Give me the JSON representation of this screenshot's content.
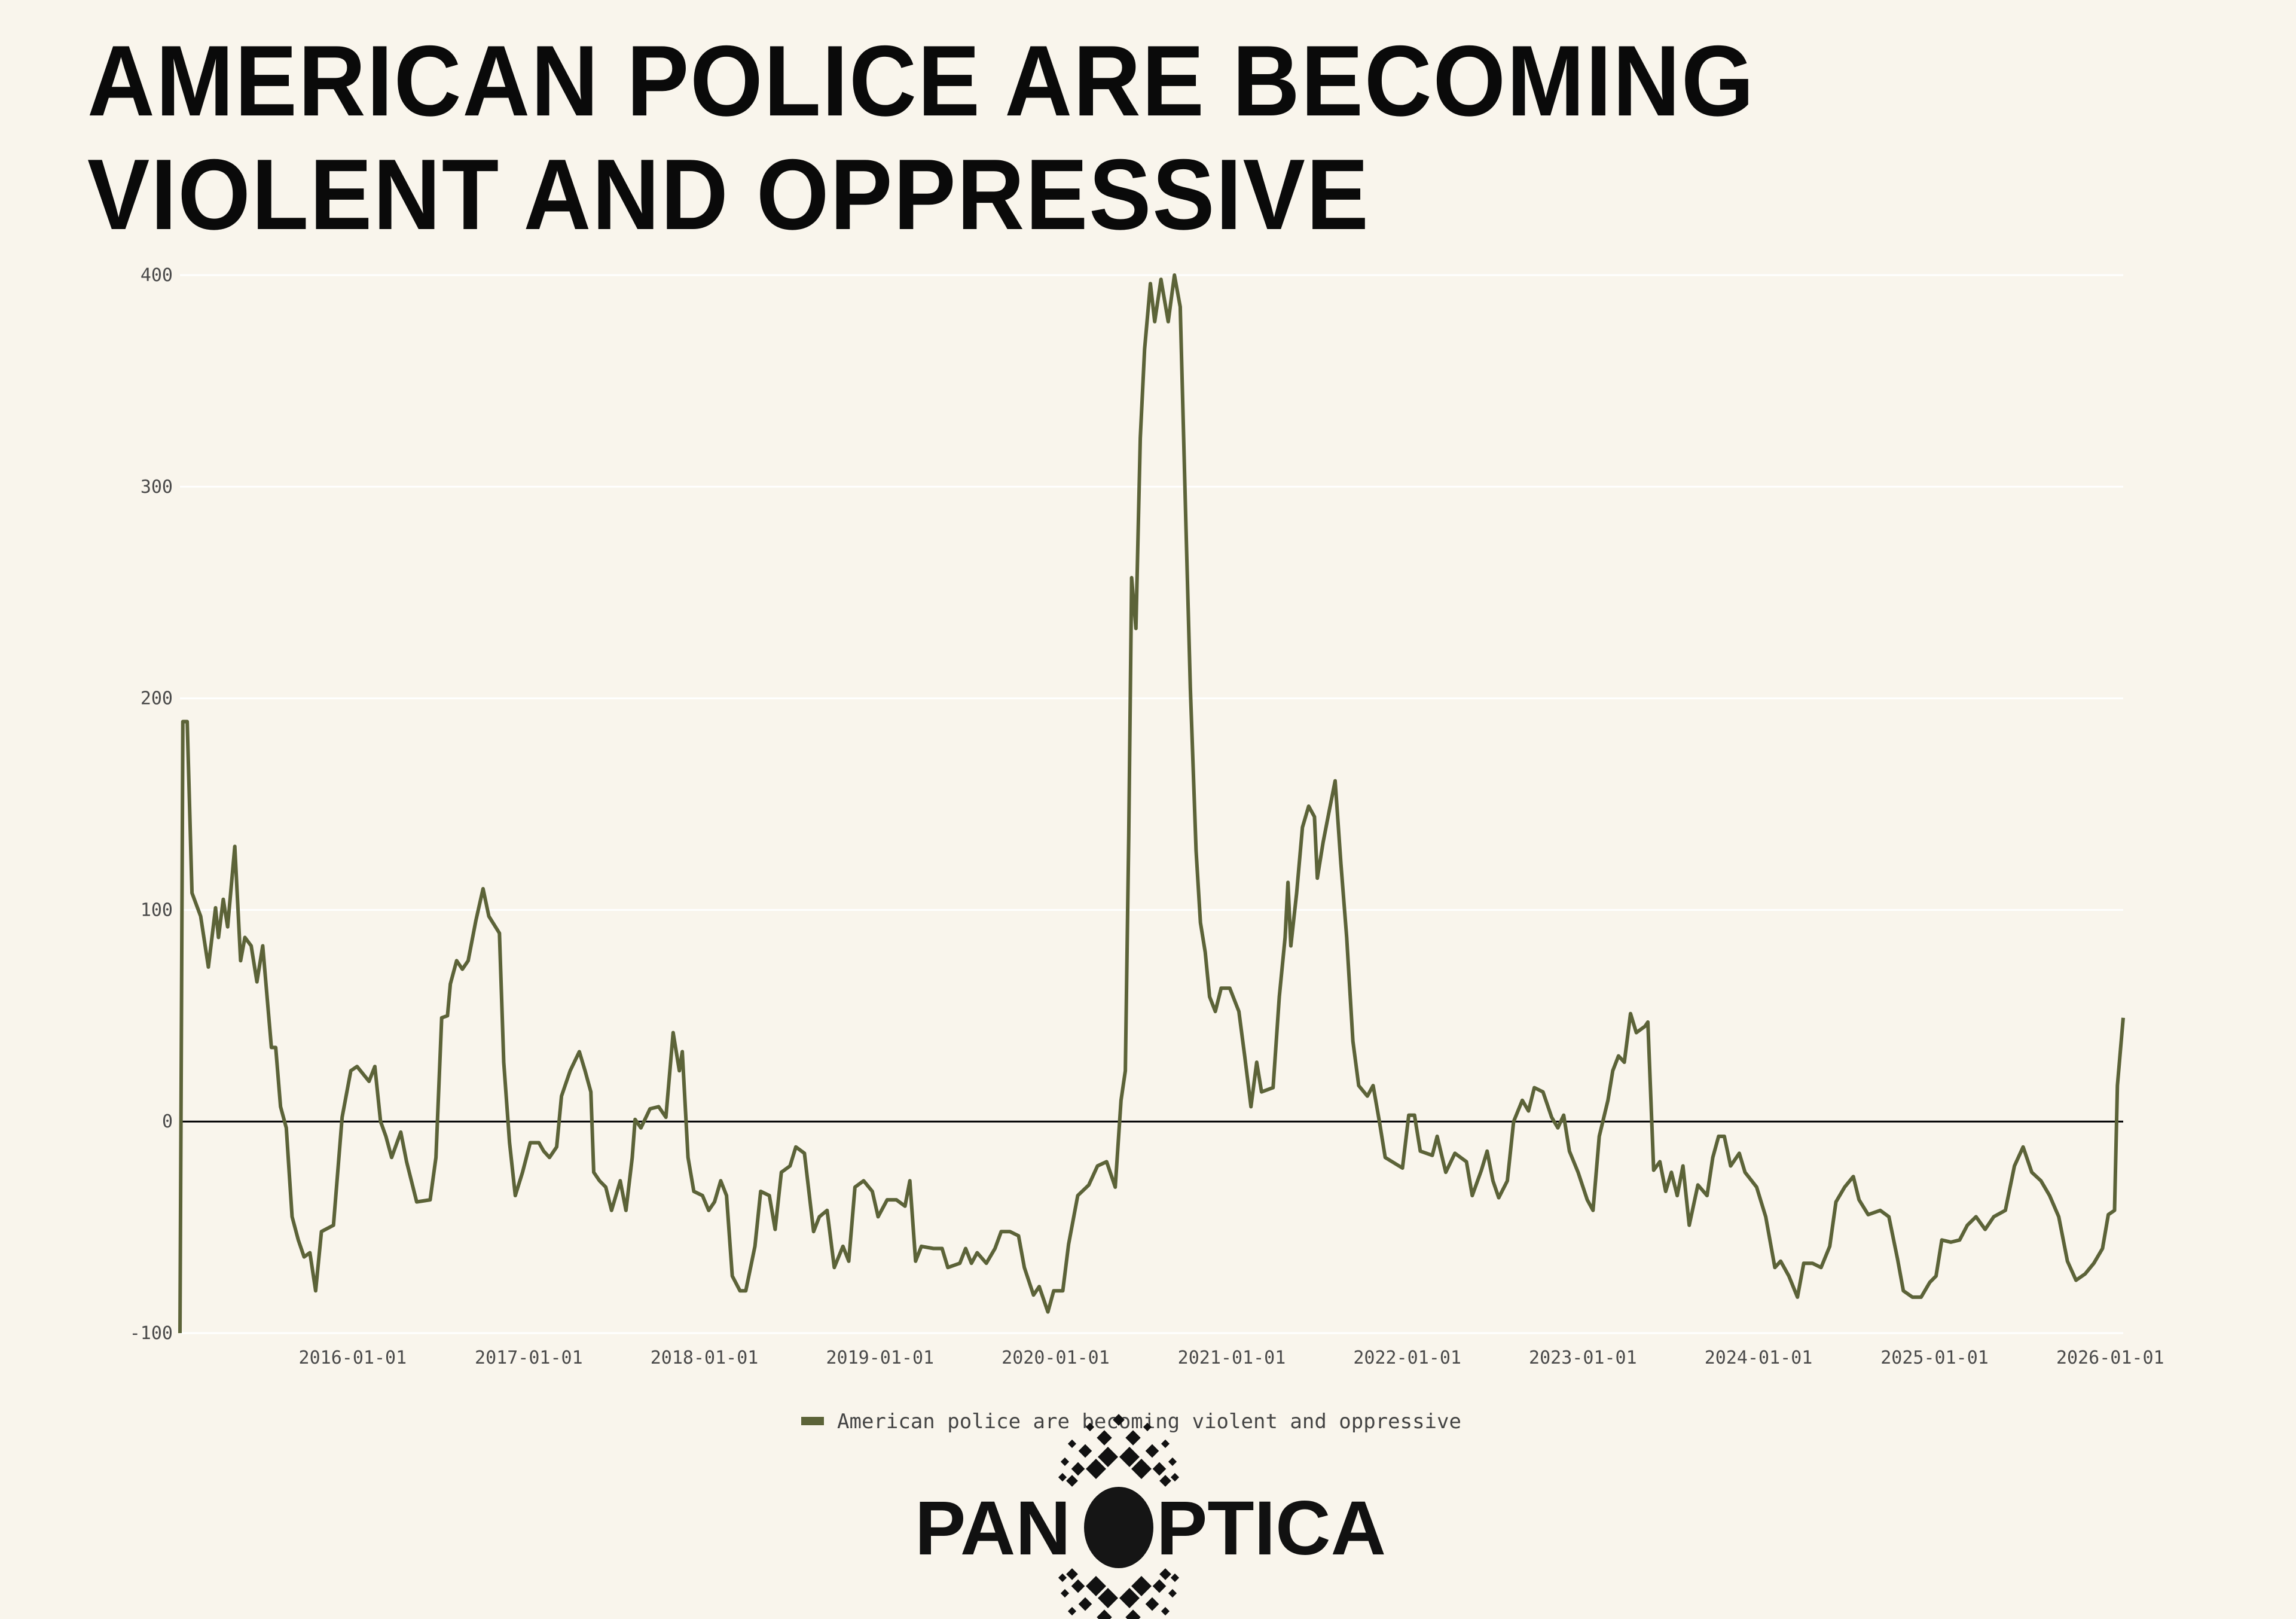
{
  "title": {
    "line1": "AMERICAN POLICE ARE BECOMING",
    "line2": "VIOLENT AND OPPRESSIVE"
  },
  "logo": {
    "text": "PANOPTICA"
  },
  "colors": {
    "background": "#f9f5ec",
    "series": "#5c6338",
    "zero_line": "#000000",
    "grid": "#ffffff"
  },
  "chart_data": {
    "type": "line",
    "title": "AMERICAN POLICE ARE BECOMING VIOLENT AND OPPRESSIVE",
    "xlabel": "",
    "ylabel": "",
    "ylim": [
      -100,
      400
    ],
    "yticks": [
      "400",
      "300",
      "200",
      "100",
      "0",
      "-100"
    ],
    "xticks": [
      "2016-01-01",
      "2017-01-01",
      "2018-01-01",
      "2019-01-01",
      "2020-01-01",
      "2021-01-01",
      "2022-01-01",
      "2023-01-01",
      "2024-01-01",
      "2025-01-01",
      "2026-01-01"
    ],
    "grid": true,
    "zero_line": true,
    "legend_position": "bottom",
    "series": [
      {
        "name": "American police are becoming violent and oppressive",
        "color": "#5c6338",
        "x": [
          "2015-01-07",
          "2015-01-13",
          "2015-01-22",
          "2015-02-01",
          "2015-02-19",
          "2015-03-07",
          "2015-03-22",
          "2015-03-28",
          "2015-04-07",
          "2015-04-16",
          "2015-05-01",
          "2015-05-13",
          "2015-05-22",
          "2015-06-04",
          "2015-06-16",
          "2015-06-28",
          "2015-07-16",
          "2015-07-25",
          "2015-08-04",
          "2015-08-16",
          "2015-08-28",
          "2015-09-10",
          "2015-09-22",
          "2015-10-04",
          "2015-10-16",
          "2015-10-28",
          "2015-11-22",
          "2015-12-10",
          "2015-12-28",
          "2016-01-10",
          "2016-02-04",
          "2016-02-16",
          "2016-02-28",
          "2016-03-10",
          "2016-03-22",
          "2016-04-10",
          "2016-04-22",
          "2016-05-13",
          "2016-06-10",
          "2016-06-22",
          "2016-07-04",
          "2016-07-16",
          "2016-07-22",
          "2016-08-04",
          "2016-08-16",
          "2016-08-28",
          "2016-09-13",
          "2016-09-28",
          "2016-10-10",
          "2016-11-01",
          "2016-11-10",
          "2016-11-22",
          "2016-12-04",
          "2016-12-19",
          "2017-01-04",
          "2017-01-22",
          "2017-02-01",
          "2017-02-13",
          "2017-02-28",
          "2017-03-10",
          "2017-03-28",
          "2017-04-16",
          "2017-04-28",
          "2017-05-10",
          "2017-05-16",
          "2017-05-28",
          "2017-06-10",
          "2017-06-22",
          "2017-07-10",
          "2017-07-22",
          "2017-08-04",
          "2017-08-10",
          "2017-08-22",
          "2017-09-10",
          "2017-09-28",
          "2017-10-13",
          "2017-10-28",
          "2017-11-10",
          "2017-11-16",
          "2017-11-28",
          "2017-12-10",
          "2017-12-28",
          "2018-01-10",
          "2018-01-22",
          "2018-02-04",
          "2018-02-16",
          "2018-02-28",
          "2018-03-16",
          "2018-03-28",
          "2018-04-16",
          "2018-04-28",
          "2018-05-16",
          "2018-05-28",
          "2018-06-10",
          "2018-06-28",
          "2018-07-10",
          "2018-07-28",
          "2018-08-16",
          "2018-08-28",
          "2018-09-13",
          "2018-09-28",
          "2018-10-16",
          "2018-10-28",
          "2018-11-10",
          "2018-11-28",
          "2018-12-16",
          "2018-12-28",
          "2019-01-16",
          "2019-02-04",
          "2019-02-22",
          "2019-03-04",
          "2019-03-16",
          "2019-03-28",
          "2019-04-22",
          "2019-05-10",
          "2019-05-22",
          "2019-06-16",
          "2019-06-28",
          "2019-07-10",
          "2019-07-22",
          "2019-08-10",
          "2019-08-28",
          "2019-09-10",
          "2019-09-28",
          "2019-10-16",
          "2019-10-28",
          "2019-11-16",
          "2019-11-28",
          "2019-12-16",
          "2019-12-28",
          "2020-01-16",
          "2020-01-28",
          "2020-02-16",
          "2020-03-10",
          "2020-03-28",
          "2020-04-16",
          "2020-05-04",
          "2020-05-16",
          "2020-05-25",
          "2020-06-01",
          "2020-06-07",
          "2020-06-16",
          "2020-06-25",
          "2020-07-04",
          "2020-07-16",
          "2020-07-25",
          "2020-08-07",
          "2020-08-22",
          "2020-09-04",
          "2020-09-16",
          "2020-09-28",
          "2020-10-07",
          "2020-10-19",
          "2020-10-28",
          "2020-11-07",
          "2020-11-16",
          "2020-11-28",
          "2020-12-10",
          "2020-12-28",
          "2021-01-16",
          "2021-01-28",
          "2021-02-10",
          "2021-02-22",
          "2021-03-04",
          "2021-03-28",
          "2021-04-10",
          "2021-04-22",
          "2021-04-28",
          "2021-05-04",
          "2021-05-16",
          "2021-05-28",
          "2021-06-10",
          "2021-06-22",
          "2021-06-28",
          "2021-07-10",
          "2021-07-22",
          "2021-08-04",
          "2021-08-16",
          "2021-08-28",
          "2021-09-10",
          "2021-09-22",
          "2021-10-10",
          "2021-10-22",
          "2021-11-04",
          "2021-11-16",
          "2021-12-22",
          "2022-01-04",
          "2022-01-16",
          "2022-01-28",
          "2022-02-22",
          "2022-03-04",
          "2022-03-22",
          "2022-04-10",
          "2022-05-04",
          "2022-05-16",
          "2022-06-04",
          "2022-06-16",
          "2022-06-28",
          "2022-07-10",
          "2022-07-28",
          "2022-08-10",
          "2022-08-28",
          "2022-09-10",
          "2022-09-22",
          "2022-10-10",
          "2022-10-28",
          "2022-11-10",
          "2022-11-22",
          "2022-12-04",
          "2022-12-22",
          "2023-01-10",
          "2023-01-22",
          "2023-02-04",
          "2023-02-22",
          "2023-03-04",
          "2023-03-16",
          "2023-03-28",
          "2023-04-10",
          "2023-04-22",
          "2023-05-10",
          "2023-05-16",
          "2023-05-28",
          "2023-06-10",
          "2023-06-22",
          "2023-07-04",
          "2023-07-16",
          "2023-07-28",
          "2023-08-10",
          "2023-08-28",
          "2023-09-16",
          "2023-09-28",
          "2023-10-10",
          "2023-10-22",
          "2023-11-04",
          "2023-11-22",
          "2023-12-04",
          "2023-12-28",
          "2024-01-16",
          "2024-02-04",
          "2024-02-16",
          "2024-03-04",
          "2024-03-22",
          "2024-04-04",
          "2024-04-22",
          "2024-05-10",
          "2024-05-28",
          "2024-06-10",
          "2024-06-28",
          "2024-07-16",
          "2024-07-28",
          "2024-08-16",
          "2024-09-10",
          "2024-09-28",
          "2024-10-16",
          "2024-10-28",
          "2024-11-16",
          "2024-12-04",
          "2024-12-22",
          "2025-01-04",
          "2025-01-16",
          "2025-02-04",
          "2025-02-22",
          "2025-03-10",
          "2025-03-28",
          "2025-04-16",
          "2025-05-04",
          "2025-05-28",
          "2025-06-16",
          "2025-07-04",
          "2025-07-22",
          "2025-08-10",
          "2025-08-28",
          "2025-09-16",
          "2025-10-04",
          "2025-10-22",
          "2025-11-10",
          "2025-11-28",
          "2025-12-16",
          "2025-12-28",
          "2026-01-10",
          "2026-01-16",
          "2026-01-28"
        ],
        "y": [
          -100,
          189,
          189,
          108,
          97,
          73,
          101,
          87,
          105,
          92,
          130,
          76,
          87,
          83,
          66,
          83,
          35,
          35,
          7,
          -3,
          -45,
          -56,
          -64,
          -62,
          -80,
          -52,
          -49,
          2,
          24,
          26,
          19,
          26,
          0,
          -7,
          -17,
          -5,
          -19,
          -38,
          -37,
          -17,
          49,
          50,
          65,
          76,
          72,
          76,
          95,
          110,
          97,
          89,
          28,
          -10,
          -35,
          -24,
          -10,
          -10,
          -14,
          -17,
          -12,
          12,
          24,
          33,
          24,
          14,
          -24,
          -28,
          -31,
          -42,
          -28,
          -42,
          -17,
          1,
          -3,
          6,
          7,
          2,
          42,
          24,
          33,
          -17,
          -33,
          -35,
          -42,
          -38,
          -28,
          -35,
          -73,
          -80,
          -80,
          -59,
          -33,
          -35,
          -51,
          -24,
          -21,
          -12,
          -15,
          -52,
          -45,
          -42,
          -69,
          -59,
          -66,
          -31,
          -28,
          -33,
          -45,
          -37,
          -37,
          -40,
          -28,
          -66,
          -59,
          -60,
          -60,
          -69,
          -67,
          -60,
          -67,
          -62,
          -67,
          -60,
          -52,
          -52,
          -54,
          -69,
          -82,
          -78,
          -90,
          -80,
          -80,
          -58,
          -35,
          -30,
          -21,
          -19,
          -31,
          10,
          24,
          135,
          257,
          233,
          323,
          365,
          396,
          378,
          398,
          378,
          400,
          385,
          281,
          205,
          128,
          94,
          80,
          59,
          52,
          63,
          63,
          52,
          31,
          7,
          28,
          14,
          16,
          59,
          87,
          113,
          83,
          108,
          139,
          149,
          144,
          115,
          132,
          146,
          161,
          122,
          87,
          38,
          17,
          12,
          17,
          0,
          -17,
          -22,
          3,
          3,
          -14,
          -16,
          -7,
          -24,
          -15,
          -19,
          -35,
          -23,
          -14,
          -28,
          -36,
          -28,
          0,
          10,
          5,
          16,
          14,
          2,
          -3,
          3,
          -14,
          -24,
          -37,
          -42,
          -7,
          10,
          24,
          31,
          28,
          51,
          42,
          45,
          47,
          -23,
          -19,
          -33,
          -24,
          -35,
          -21,
          -49,
          -30,
          -35,
          -17,
          -7,
          -7,
          -21,
          -15,
          -24,
          -31,
          -45,
          -69,
          -66,
          -73,
          -83,
          -67,
          -67,
          -69,
          -59,
          -38,
          -31,
          -26,
          -37,
          -44,
          -42,
          -45,
          -65,
          -80,
          -83,
          -83,
          -76,
          -73,
          -56,
          -57,
          -56,
          -49,
          -45,
          -51,
          -45,
          -42,
          -21,
          -12,
          -24,
          -28,
          -35,
          -45,
          -66,
          -75,
          -72,
          -67,
          -60,
          -44,
          -42,
          17,
          49
        ]
      }
    ]
  }
}
